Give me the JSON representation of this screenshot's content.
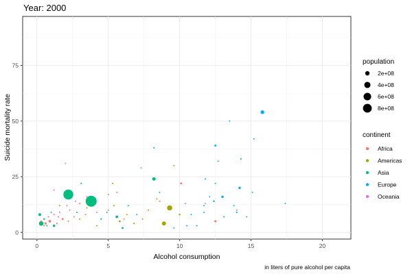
{
  "chart_data": {
    "type": "scatter",
    "title": "Year: 2000",
    "xlabel": "Alcohol consumption",
    "ylabel": "Suicide mortality rate",
    "caption": "in liters of pure alcohol per capita",
    "xlim": [
      -1,
      22
    ],
    "ylim": [
      -3,
      97
    ],
    "x_ticks": [
      0,
      5,
      10,
      15,
      20
    ],
    "y_ticks": [
      0,
      25,
      50,
      75
    ],
    "grid": true,
    "legend_position": "right",
    "size_legend": {
      "title": "population",
      "entries": [
        {
          "label": "2e+08",
          "value": 200000000
        },
        {
          "label": "4e+08",
          "value": 400000000
        },
        {
          "label": "6e+08",
          "value": 600000000
        },
        {
          "label": "8e+08",
          "value": 800000000
        }
      ]
    },
    "series": [
      {
        "name": "Africa",
        "color": "#F8766D",
        "points": [
          {
            "x": 0.3,
            "y": 5,
            "pop": 30000000
          },
          {
            "x": 0.5,
            "y": 3,
            "pop": 20000000
          },
          {
            "x": 0.6,
            "y": 4,
            "pop": 50000000
          },
          {
            "x": 0.8,
            "y": 7,
            "pop": 15000000
          },
          {
            "x": 0.9,
            "y": 5,
            "pop": 70000000
          },
          {
            "x": 1.2,
            "y": 8,
            "pop": 10000000
          },
          {
            "x": 1.4,
            "y": 4,
            "pop": 25000000
          },
          {
            "x": 1.6,
            "y": 9,
            "pop": 8000000
          },
          {
            "x": 1.8,
            "y": 6,
            "pop": 40000000
          },
          {
            "x": 2.1,
            "y": 12,
            "pop": 5000000
          },
          {
            "x": 2.3,
            "y": 10,
            "pop": 20000000
          },
          {
            "x": 2.6,
            "y": 7,
            "pop": 10000000
          },
          {
            "x": 3.0,
            "y": 13,
            "pop": 12000000
          },
          {
            "x": 3.4,
            "y": 8,
            "pop": 15000000
          },
          {
            "x": 4.2,
            "y": 9,
            "pop": 10000000
          },
          {
            "x": 5.0,
            "y": 10,
            "pop": 20000000
          },
          {
            "x": 5.6,
            "y": 18,
            "pop": 3000000
          },
          {
            "x": 6.1,
            "y": 6,
            "pop": 8000000
          },
          {
            "x": 7.3,
            "y": 29,
            "pop": 2000000
          },
          {
            "x": 8.6,
            "y": 14,
            "pop": 3000000
          },
          {
            "x": 10.1,
            "y": 22,
            "pop": 40000000
          },
          {
            "x": 12.5,
            "y": 5,
            "pop": 45000000
          },
          {
            "x": 14.0,
            "y": 10,
            "pop": 4000000
          }
        ]
      },
      {
        "name": "Americas",
        "color": "#A3A500",
        "points": [
          {
            "x": 1.6,
            "y": 12,
            "pop": 8000000
          },
          {
            "x": 2.2,
            "y": 5,
            "pop": 6000000
          },
          {
            "x": 3.0,
            "y": 6,
            "pop": 10000000
          },
          {
            "x": 3.5,
            "y": 11,
            "pop": 5000000
          },
          {
            "x": 4.2,
            "y": 3,
            "pop": 8000000
          },
          {
            "x": 5.0,
            "y": 17,
            "pop": 2000000
          },
          {
            "x": 5.3,
            "y": 22,
            "pop": 1000000
          },
          {
            "x": 5.4,
            "y": 12,
            "pop": 5000000
          },
          {
            "x": 5.8,
            "y": 5,
            "pop": 40000000
          },
          {
            "x": 6.3,
            "y": 8,
            "pop": 15000000
          },
          {
            "x": 6.8,
            "y": 4,
            "pop": 25000000
          },
          {
            "x": 7.4,
            "y": 6,
            "pop": 10000000
          },
          {
            "x": 7.8,
            "y": 10,
            "pop": 6000000
          },
          {
            "x": 8.4,
            "y": 15,
            "pop": 4000000
          },
          {
            "x": 8.9,
            "y": 4,
            "pop": 170000000
          },
          {
            "x": 9.3,
            "y": 11,
            "pop": 280000000
          },
          {
            "x": 9.6,
            "y": 30,
            "pop": 1000000
          },
          {
            "x": 10.0,
            "y": 8,
            "pop": 30000000
          }
        ]
      },
      {
        "name": "Asia",
        "color": "#00BF7D",
        "points": [
          {
            "x": 0.2,
            "y": 8,
            "pop": 80000000
          },
          {
            "x": 0.3,
            "y": 4,
            "pop": 210000000
          },
          {
            "x": 0.5,
            "y": 6,
            "pop": 30000000
          },
          {
            "x": 0.7,
            "y": 3,
            "pop": 20000000
          },
          {
            "x": 1.0,
            "y": 9,
            "pop": 15000000
          },
          {
            "x": 1.2,
            "y": 3,
            "pop": 60000000
          },
          {
            "x": 2.2,
            "y": 17,
            "pop": 1020000000
          },
          {
            "x": 2.8,
            "y": 9,
            "pop": 20000000
          },
          {
            "x": 3.1,
            "y": 22,
            "pop": 5000000
          },
          {
            "x": 3.8,
            "y": 14,
            "pop": 1260000000
          },
          {
            "x": 4.5,
            "y": 6,
            "pop": 25000000
          },
          {
            "x": 4.9,
            "y": 9,
            "pop": 10000000
          },
          {
            "x": 5.6,
            "y": 7,
            "pop": 70000000
          },
          {
            "x": 6.0,
            "y": 2,
            "pop": 40000000
          },
          {
            "x": 6.4,
            "y": 12,
            "pop": 15000000
          },
          {
            "x": 7.0,
            "y": 8,
            "pop": 8000000
          },
          {
            "x": 8.2,
            "y": 24,
            "pop": 127000000
          },
          {
            "x": 8.2,
            "y": 38,
            "pop": 5000000
          },
          {
            "x": 8.6,
            "y": 18,
            "pop": 10000000
          },
          {
            "x": 12.4,
            "y": 14,
            "pop": 30000000
          }
        ]
      },
      {
        "name": "Europe",
        "color": "#00B0F6",
        "points": [
          {
            "x": 9.6,
            "y": 2,
            "pop": 3000000
          },
          {
            "x": 10.5,
            "y": 3,
            "pop": 5000000
          },
          {
            "x": 10.8,
            "y": 8,
            "pop": 10000000
          },
          {
            "x": 11.2,
            "y": 3,
            "pop": 4000000
          },
          {
            "x": 11.7,
            "y": 9,
            "pop": 8000000
          },
          {
            "x": 11.7,
            "y": 12,
            "pop": 2000000
          },
          {
            "x": 11.8,
            "y": 24,
            "pop": 3000000
          },
          {
            "x": 12.1,
            "y": 16,
            "pop": 7000000
          },
          {
            "x": 12.5,
            "y": 22,
            "pop": 1000000
          },
          {
            "x": 12.5,
            "y": 39,
            "pop": 40000000
          },
          {
            "x": 12.7,
            "y": 32,
            "pop": 3000000
          },
          {
            "x": 13.0,
            "y": 16,
            "pop": 60000000
          },
          {
            "x": 13.1,
            "y": 7,
            "pop": 5000000
          },
          {
            "x": 13.5,
            "y": 50,
            "pop": 2000000
          },
          {
            "x": 13.8,
            "y": 12,
            "pop": 15000000
          },
          {
            "x": 14.0,
            "y": 9,
            "pop": 25000000
          },
          {
            "x": 14.2,
            "y": 20,
            "pop": 60000000
          },
          {
            "x": 14.3,
            "y": 33,
            "pop": 10000000
          },
          {
            "x": 14.7,
            "y": 7,
            "pop": 5000000
          },
          {
            "x": 15.1,
            "y": 18,
            "pop": 3000000
          },
          {
            "x": 15.2,
            "y": 42,
            "pop": 10000000
          },
          {
            "x": 15.8,
            "y": 54,
            "pop": 146000000
          },
          {
            "x": 17.4,
            "y": 13,
            "pop": 4000000
          }
        ]
      },
      {
        "name": "Oceania",
        "color": "#E76BF3",
        "points": [
          {
            "x": 1.2,
            "y": 19,
            "pop": 1000000
          },
          {
            "x": 1.5,
            "y": 7,
            "pop": 5000000
          },
          {
            "x": 2.0,
            "y": 31,
            "pop": 1000000
          },
          {
            "x": 2.7,
            "y": 14,
            "pop": 2000000
          },
          {
            "x": 3.5,
            "y": 16,
            "pop": 1000000
          },
          {
            "x": 10.4,
            "y": 13,
            "pop": 19000000
          },
          {
            "x": 11.8,
            "y": 13,
            "pop": 4000000
          }
        ]
      }
    ]
  }
}
